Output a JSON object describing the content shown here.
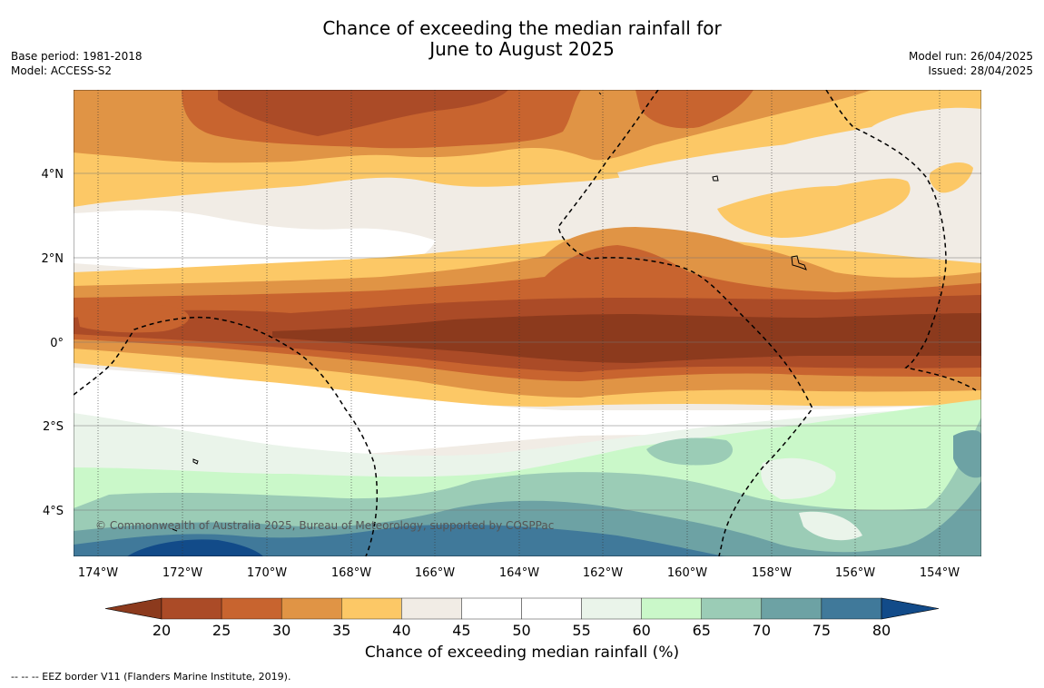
{
  "title_line1": "Chance of exceeding the median rainfall for",
  "title_line2": "June to August 2025",
  "base_period": "Base period: 1981-2018",
  "model": "Model: ACCESS-S2",
  "model_run": "Model run: 26/04/2025",
  "issued": "Issued: 28/04/2025",
  "copyright": "© Commonwealth of Australia 2025, Bureau of Meteorology, supported by COSPPac",
  "footnote": "--  --  -- EEZ border V11 (Flanders Marine Institute, 2019).",
  "x_ticks": [
    "174°W",
    "172°W",
    "170°W",
    "168°W",
    "166°W",
    "164°W",
    "162°W",
    "160°W",
    "158°W",
    "156°W",
    "154°W"
  ],
  "y_ticks": [
    "4°N",
    "2°N",
    "0°",
    "2°S",
    "4°S"
  ],
  "colorbar": {
    "label": "Chance of exceeding median rainfall (%)",
    "ticks": [
      "20",
      "25",
      "30",
      "35",
      "40",
      "45",
      "50",
      "55",
      "60",
      "65",
      "70",
      "75",
      "80"
    ],
    "colors": [
      "#8c3a1d",
      "#ab4b27",
      "#c8642f",
      "#e09445",
      "#fcc866",
      "#f1ece5",
      "#ffffff",
      "#ffffff",
      "#eaf4ea",
      "#caf8c9",
      "#9bccb6",
      "#6da2a4",
      "#40799a",
      "#124b89"
    ]
  },
  "legend_colors": {
    "ocean": "#ffffff",
    "eez_line": "#000000"
  }
}
